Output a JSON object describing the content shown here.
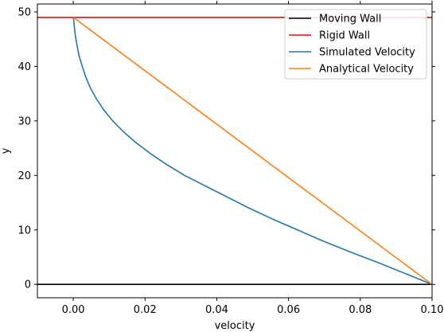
{
  "chart_data": {
    "type": "line",
    "title": "",
    "xlabel": "velocity",
    "ylabel": "y",
    "xlim": [
      -0.01,
      0.1
    ],
    "ylim": [
      -2.45,
      51.45
    ],
    "xticks": [
      0.0,
      0.02,
      0.04,
      0.06,
      0.08,
      0.1
    ],
    "xtick_labels": [
      "0.00",
      "0.02",
      "0.04",
      "0.06",
      "0.08",
      "0.10"
    ],
    "yticks": [
      0,
      10,
      20,
      30,
      40,
      50
    ],
    "ytick_labels": [
      "0",
      "10",
      "20",
      "30",
      "40",
      "50"
    ],
    "grid": false,
    "legend_position": "top-right",
    "series": [
      {
        "name": "Moving Wall",
        "color": "#000000",
        "kind": "hline",
        "y": 0
      },
      {
        "name": "Rigid Wall",
        "color": "#ff0000",
        "kind": "hline",
        "y": 49
      },
      {
        "name": "Simulated Velocity",
        "color": "#1f77b4",
        "kind": "line",
        "points": [
          [
            0.1,
            0
          ],
          [
            0.0925,
            2
          ],
          [
            0.085,
            4
          ],
          [
            0.077,
            6
          ],
          [
            0.0695,
            8
          ],
          [
            0.0625,
            10
          ],
          [
            0.0555,
            12
          ],
          [
            0.049,
            14
          ],
          [
            0.043,
            16
          ],
          [
            0.037,
            18
          ],
          [
            0.031,
            20
          ],
          [
            0.026,
            22
          ],
          [
            0.0215,
            24
          ],
          [
            0.0175,
            26
          ],
          [
            0.014,
            28
          ],
          [
            0.011,
            30
          ],
          [
            0.0085,
            32
          ],
          [
            0.0065,
            34
          ],
          [
            0.0048,
            36
          ],
          [
            0.0035,
            38
          ],
          [
            0.0025,
            40
          ],
          [
            0.0016,
            42
          ],
          [
            0.001,
            44
          ],
          [
            0.0005,
            46
          ],
          [
            0.0002,
            48
          ],
          [
            0.0,
            49
          ]
        ]
      },
      {
        "name": "Analytical Velocity",
        "color": "#ff7f0e",
        "kind": "line",
        "points": [
          [
            0.1,
            0
          ],
          [
            0.0,
            49
          ]
        ]
      }
    ]
  }
}
